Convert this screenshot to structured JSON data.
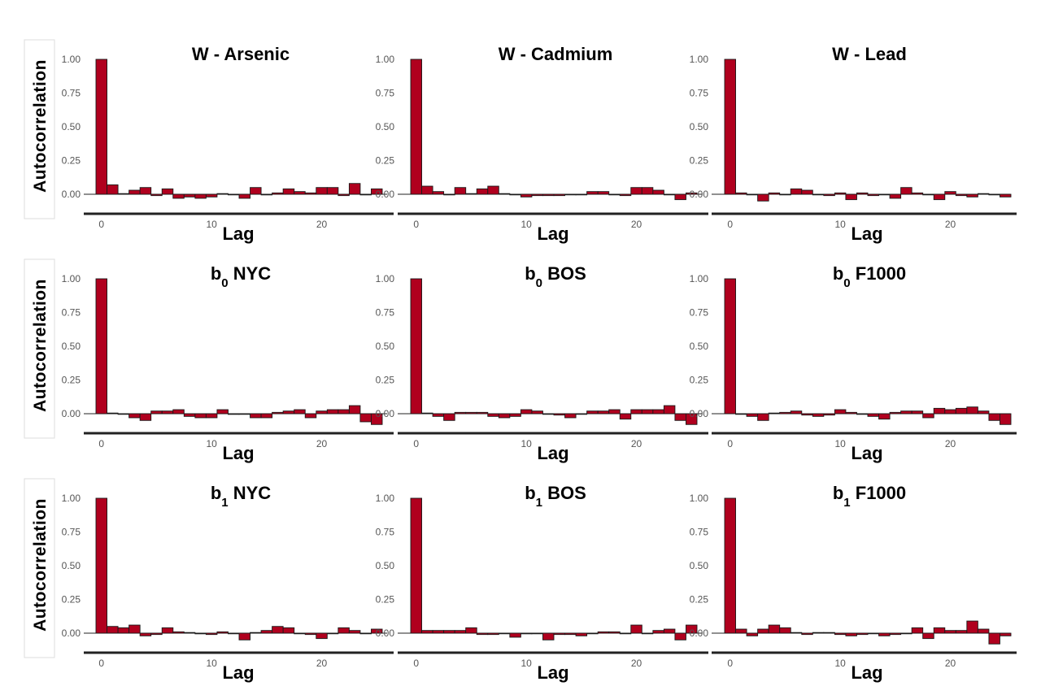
{
  "colors": {
    "bar": "#b0001e",
    "bar_stroke": "#1a1a1a",
    "axis": "#222222",
    "tick_text": "#555555"
  },
  "chart_data": {
    "type": "bar",
    "layout": "3x3 grid",
    "xlabel": "Lag",
    "ylabel": "Autocorrelation",
    "xlim": [
      -0.5,
      25.5
    ],
    "ylim": [
      -0.12,
      1.05
    ],
    "y_ticks": [
      "1.00",
      "0.75",
      "0.50",
      "0.25",
      "0.00"
    ],
    "x_ticks": [
      "0",
      "10",
      "20"
    ],
    "grid": false,
    "lags": [
      0,
      1,
      2,
      3,
      4,
      5,
      6,
      7,
      8,
      9,
      10,
      11,
      12,
      13,
      14,
      15,
      16,
      17,
      18,
      19,
      20,
      21,
      22,
      23,
      24,
      25
    ],
    "panels": [
      {
        "title": "W - Arsenic",
        "title_main": "W - Arsenic",
        "title_sub": "",
        "title_rest": "",
        "values": [
          1.0,
          0.07,
          0.005,
          0.03,
          0.05,
          -0.01,
          0.04,
          -0.03,
          -0.02,
          -0.03,
          -0.02,
          0.005,
          0.0,
          -0.03,
          0.05,
          -0.005,
          0.01,
          0.04,
          0.02,
          0.01,
          0.05,
          0.05,
          -0.01,
          0.08,
          -0.005,
          0.04
        ]
      },
      {
        "title": "W - Cadmium",
        "title_main": "W - Cadmium",
        "title_sub": "",
        "title_rest": "",
        "values": [
          1.0,
          0.06,
          0.02,
          0.0,
          0.05,
          0.005,
          0.04,
          0.06,
          0.005,
          0.0,
          -0.02,
          -0.01,
          -0.01,
          -0.01,
          0.0,
          0.0,
          0.02,
          0.02,
          0.0,
          -0.01,
          0.05,
          0.05,
          0.03,
          0.0,
          -0.04,
          0.01
        ]
      },
      {
        "title": "W - Lead",
        "title_main": "W - Lead",
        "title_sub": "",
        "title_rest": "",
        "values": [
          1.0,
          0.01,
          0.0,
          -0.05,
          0.01,
          0.0,
          0.04,
          0.03,
          0.0,
          -0.01,
          0.01,
          -0.04,
          0.01,
          -0.01,
          0.0,
          -0.03,
          0.05,
          0.01,
          0.0,
          -0.04,
          0.02,
          -0.01,
          -0.02,
          0.005,
          0.0,
          -0.02
        ]
      },
      {
        "title": "b0 NYC",
        "title_main": "b",
        "title_sub": "0",
        "title_rest": " NYC",
        "values": [
          1.0,
          0.005,
          0.0,
          -0.03,
          -0.05,
          0.02,
          0.02,
          0.03,
          -0.02,
          -0.03,
          -0.03,
          0.03,
          -0.005,
          0.0,
          -0.03,
          -0.03,
          0.01,
          0.02,
          0.03,
          -0.03,
          0.02,
          0.03,
          0.03,
          0.06,
          -0.06,
          -0.08
        ]
      },
      {
        "title": "b0 BOS",
        "title_main": "b",
        "title_sub": "0",
        "title_rest": " BOS",
        "values": [
          1.0,
          0.005,
          -0.02,
          -0.05,
          0.01,
          0.01,
          0.01,
          -0.02,
          -0.03,
          -0.02,
          0.03,
          0.02,
          0.0,
          -0.01,
          -0.03,
          0.0,
          0.02,
          0.02,
          0.03,
          -0.04,
          0.03,
          0.03,
          0.03,
          0.06,
          -0.05,
          -0.08
        ]
      },
      {
        "title": "b0 F1000",
        "title_main": "b",
        "title_sub": "0",
        "title_rest": " F1000",
        "values": [
          1.0,
          0.0,
          -0.02,
          -0.05,
          0.005,
          0.01,
          0.02,
          -0.01,
          -0.02,
          -0.01,
          0.03,
          0.01,
          -0.005,
          -0.02,
          -0.04,
          0.01,
          0.02,
          0.02,
          -0.03,
          0.04,
          0.03,
          0.04,
          0.05,
          0.02,
          -0.05,
          -0.08
        ]
      },
      {
        "title": "b1 NYC",
        "title_main": "b",
        "title_sub": "1",
        "title_rest": " NYC",
        "values": [
          1.0,
          0.05,
          0.04,
          0.06,
          -0.02,
          -0.01,
          0.04,
          0.01,
          0.005,
          -0.005,
          -0.01,
          0.01,
          0.0,
          -0.05,
          0.005,
          0.02,
          0.05,
          0.04,
          0.0,
          -0.01,
          -0.04,
          0.0,
          0.04,
          0.02,
          0.0,
          0.03
        ]
      },
      {
        "title": "b1 BOS",
        "title_main": "b",
        "title_sub": "1",
        "title_rest": " BOS",
        "values": [
          1.0,
          0.02,
          0.02,
          0.02,
          0.02,
          0.04,
          -0.01,
          -0.01,
          0.0,
          -0.03,
          -0.005,
          0.0,
          -0.05,
          -0.01,
          -0.01,
          -0.02,
          0.0,
          0.01,
          0.01,
          0.0,
          0.06,
          0.0,
          0.02,
          0.03,
          -0.05,
          0.06
        ]
      },
      {
        "title": "b1 F1000",
        "title_main": "b",
        "title_sub": "1",
        "title_rest": " F1000",
        "values": [
          1.0,
          0.03,
          -0.02,
          0.03,
          0.06,
          0.04,
          0.005,
          -0.01,
          0.005,
          0.005,
          -0.01,
          -0.02,
          -0.01,
          0.0,
          -0.02,
          -0.01,
          0.0,
          0.04,
          -0.04,
          0.04,
          0.02,
          0.02,
          0.09,
          0.03,
          -0.08,
          -0.02
        ]
      }
    ]
  }
}
